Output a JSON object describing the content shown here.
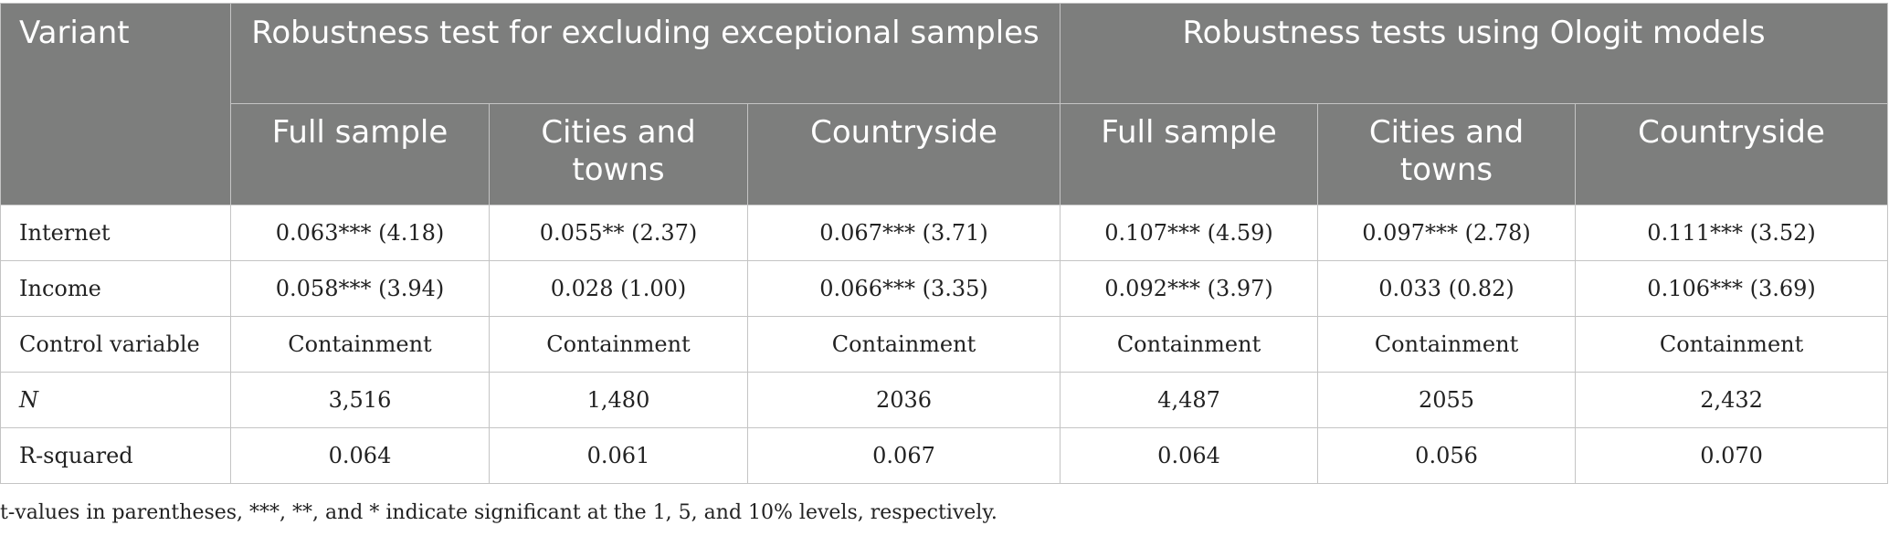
{
  "header": {
    "variant_label": "Variant",
    "group1": "Robustness test for excluding exceptional samples",
    "group2": "Robustness tests using Ologit models",
    "subheaders": [
      "Full sample",
      "Cities and towns",
      "Countryside",
      "Full sample",
      "Cities and towns",
      "Countryside"
    ]
  },
  "rows": [
    {
      "label": "Internet",
      "italic": false,
      "values": [
        "0.063*** (4.18)",
        "0.055** (2.37)",
        "0.067*** (3.71)",
        "0.107*** (4.59)",
        "0.097*** (2.78)",
        "0.111*** (3.52)"
      ]
    },
    {
      "label": "Income",
      "italic": false,
      "values": [
        "0.058*** (3.94)",
        "0.028 (1.00)",
        "0.066*** (3.35)",
        "0.092*** (3.97)",
        "0.033 (0.82)",
        "0.106*** (3.69)"
      ]
    },
    {
      "label": "Control variable",
      "italic": false,
      "values": [
        "Containment",
        "Containment",
        "Containment",
        "Containment",
        "Containment",
        "Containment"
      ]
    },
    {
      "label": "N",
      "italic": true,
      "values": [
        "3,516",
        "1,480",
        "2036",
        "4,487",
        "2055",
        "2,432"
      ]
    },
    {
      "label": "R-squared",
      "italic": false,
      "values": [
        "0.064",
        "0.061",
        "0.067",
        "0.064",
        "0.056",
        "0.070"
      ]
    }
  ],
  "note": "t-values in parentheses, ***, **, and * indicate significant at the 1, 5, and 10% levels, respectively."
}
